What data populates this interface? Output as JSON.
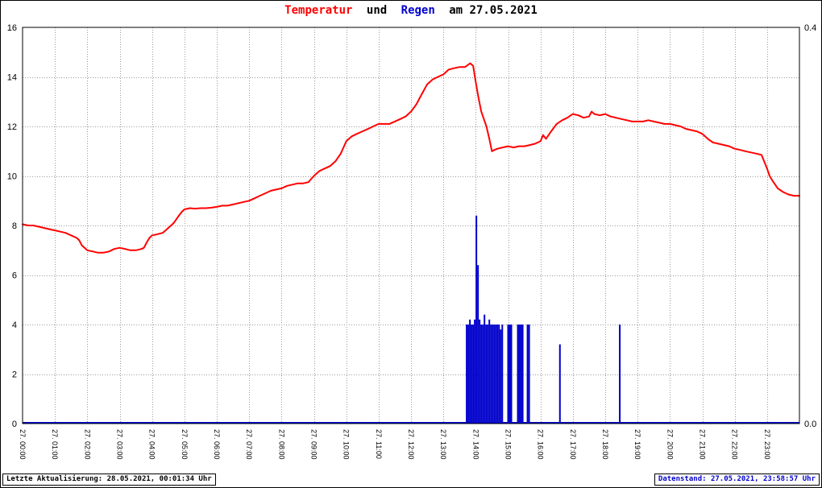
{
  "title": {
    "part1": "Temperatur",
    "part2": "und",
    "part3": "Regen",
    "part4": "am 27.05.2021"
  },
  "footer": {
    "last_update": "Letzte Aktualisierung: 28.05.2021, 00:01:34 Uhr",
    "data_state": "Datenstand: 27.05.2021, 23:58:57 Uhr"
  },
  "colors": {
    "temperature": "#ff0000",
    "rain": "#0000cc",
    "title_text": "#000000",
    "grid": "#9a9a9a",
    "axis": "#000000"
  },
  "chart_data": {
    "type": "mixed",
    "title": "Temperatur und Regen am 27.05.2021",
    "grid": true,
    "left_axis": {
      "label": "Temperatur",
      "min": 0,
      "max": 16,
      "ticks": [
        0,
        2,
        4,
        6,
        8,
        10,
        12,
        14,
        16
      ]
    },
    "right_axis": {
      "label": "Regen",
      "min": 0,
      "max": 0.4,
      "tick_labels": [
        "0.4",
        "0.0"
      ]
    },
    "x_axis": {
      "min_hour": 0,
      "max_hour": 24,
      "labels": [
        "27. 00:00",
        "27. 01:00",
        "27. 02:00",
        "27. 03:00",
        "27. 04:00",
        "27. 05:00",
        "27. 06:00",
        "27. 07:00",
        "27. 08:00",
        "27. 09:00",
        "27. 10:00",
        "27. 11:00",
        "27. 12:00",
        "27. 13:00",
        "27. 14:00",
        "27. 15:00",
        "27. 16:00",
        "27. 17:00",
        "27. 18:00",
        "27. 19:00",
        "27. 20:00",
        "27. 21:00",
        "27. 22:00",
        "27. 23:00"
      ]
    },
    "series": [
      {
        "name": "Temperatur",
        "type": "line",
        "axis": "left",
        "color": "#ff0000",
        "points": [
          [
            0,
            8.05
          ],
          [
            0.17,
            8.0
          ],
          [
            0.33,
            8.0
          ],
          [
            0.5,
            7.95
          ],
          [
            0.67,
            7.9
          ],
          [
            0.83,
            7.85
          ],
          [
            1,
            7.8
          ],
          [
            1.17,
            7.75
          ],
          [
            1.33,
            7.7
          ],
          [
            1.5,
            7.6
          ],
          [
            1.67,
            7.5
          ],
          [
            1.75,
            7.4
          ],
          [
            1.83,
            7.2
          ],
          [
            2,
            7.0
          ],
          [
            2.17,
            6.95
          ],
          [
            2.33,
            6.9
          ],
          [
            2.5,
            6.9
          ],
          [
            2.67,
            6.95
          ],
          [
            2.83,
            7.05
          ],
          [
            3,
            7.1
          ],
          [
            3.17,
            7.05
          ],
          [
            3.33,
            7.0
          ],
          [
            3.5,
            7.0
          ],
          [
            3.67,
            7.05
          ],
          [
            3.75,
            7.1
          ],
          [
            3.83,
            7.3
          ],
          [
            3.92,
            7.5
          ],
          [
            4,
            7.6
          ],
          [
            4.17,
            7.65
          ],
          [
            4.33,
            7.7
          ],
          [
            4.5,
            7.9
          ],
          [
            4.67,
            8.1
          ],
          [
            4.83,
            8.4
          ],
          [
            4.92,
            8.55
          ],
          [
            5,
            8.65
          ],
          [
            5.17,
            8.7
          ],
          [
            5.33,
            8.68
          ],
          [
            5.5,
            8.7
          ],
          [
            5.67,
            8.7
          ],
          [
            5.83,
            8.72
          ],
          [
            6,
            8.75
          ],
          [
            6.17,
            8.8
          ],
          [
            6.33,
            8.8
          ],
          [
            6.5,
            8.85
          ],
          [
            6.67,
            8.9
          ],
          [
            6.83,
            8.95
          ],
          [
            7,
            9.0
          ],
          [
            7.17,
            9.1
          ],
          [
            7.33,
            9.2
          ],
          [
            7.5,
            9.3
          ],
          [
            7.67,
            9.4
          ],
          [
            7.83,
            9.45
          ],
          [
            8,
            9.5
          ],
          [
            8.17,
            9.6
          ],
          [
            8.33,
            9.65
          ],
          [
            8.5,
            9.7
          ],
          [
            8.67,
            9.7
          ],
          [
            8.83,
            9.75
          ],
          [
            9,
            10.0
          ],
          [
            9.17,
            10.2
          ],
          [
            9.33,
            10.3
          ],
          [
            9.5,
            10.4
          ],
          [
            9.67,
            10.6
          ],
          [
            9.83,
            10.9
          ],
          [
            10,
            11.4
          ],
          [
            10.17,
            11.6
          ],
          [
            10.33,
            11.7
          ],
          [
            10.5,
            11.8
          ],
          [
            10.67,
            11.9
          ],
          [
            10.83,
            12.0
          ],
          [
            11,
            12.1
          ],
          [
            11.17,
            12.1
          ],
          [
            11.33,
            12.1
          ],
          [
            11.5,
            12.2
          ],
          [
            11.67,
            12.3
          ],
          [
            11.83,
            12.4
          ],
          [
            12,
            12.6
          ],
          [
            12.17,
            12.9
          ],
          [
            12.33,
            13.3
          ],
          [
            12.5,
            13.7
          ],
          [
            12.67,
            13.9
          ],
          [
            12.83,
            14.0
          ],
          [
            13,
            14.1
          ],
          [
            13.17,
            14.3
          ],
          [
            13.33,
            14.35
          ],
          [
            13.5,
            14.4
          ],
          [
            13.67,
            14.4
          ],
          [
            13.83,
            14.55
          ],
          [
            13.92,
            14.45
          ],
          [
            14,
            13.8
          ],
          [
            14.08,
            13.2
          ],
          [
            14.17,
            12.6
          ],
          [
            14.25,
            12.3
          ],
          [
            14.33,
            12.0
          ],
          [
            14.42,
            11.5
          ],
          [
            14.5,
            11.0
          ],
          [
            14.58,
            11.05
          ],
          [
            14.67,
            11.1
          ],
          [
            14.83,
            11.15
          ],
          [
            15,
            11.2
          ],
          [
            15.17,
            11.15
          ],
          [
            15.33,
            11.2
          ],
          [
            15.5,
            11.2
          ],
          [
            15.67,
            11.25
          ],
          [
            15.83,
            11.3
          ],
          [
            16,
            11.4
          ],
          [
            16.08,
            11.65
          ],
          [
            16.17,
            11.5
          ],
          [
            16.33,
            11.8
          ],
          [
            16.5,
            12.1
          ],
          [
            16.67,
            12.25
          ],
          [
            16.83,
            12.35
          ],
          [
            17,
            12.5
          ],
          [
            17.17,
            12.45
          ],
          [
            17.33,
            12.35
          ],
          [
            17.5,
            12.4
          ],
          [
            17.58,
            12.6
          ],
          [
            17.67,
            12.5
          ],
          [
            17.83,
            12.45
          ],
          [
            18,
            12.5
          ],
          [
            18.17,
            12.4
          ],
          [
            18.33,
            12.35
          ],
          [
            18.5,
            12.3
          ],
          [
            18.67,
            12.25
          ],
          [
            18.83,
            12.2
          ],
          [
            19,
            12.2
          ],
          [
            19.17,
            12.2
          ],
          [
            19.33,
            12.25
          ],
          [
            19.5,
            12.2
          ],
          [
            19.67,
            12.15
          ],
          [
            19.83,
            12.1
          ],
          [
            20,
            12.1
          ],
          [
            20.17,
            12.05
          ],
          [
            20.33,
            12.0
          ],
          [
            20.5,
            11.9
          ],
          [
            20.67,
            11.85
          ],
          [
            20.83,
            11.8
          ],
          [
            21,
            11.7
          ],
          [
            21.17,
            11.5
          ],
          [
            21.33,
            11.35
          ],
          [
            21.5,
            11.3
          ],
          [
            21.67,
            11.25
          ],
          [
            21.83,
            11.2
          ],
          [
            22,
            11.1
          ],
          [
            22.17,
            11.05
          ],
          [
            22.33,
            11.0
          ],
          [
            22.5,
            10.95
          ],
          [
            22.67,
            10.9
          ],
          [
            22.83,
            10.85
          ],
          [
            23,
            10.3
          ],
          [
            23.08,
            10.0
          ],
          [
            23.17,
            9.8
          ],
          [
            23.33,
            9.5
          ],
          [
            23.5,
            9.35
          ],
          [
            23.67,
            9.25
          ],
          [
            23.83,
            9.2
          ],
          [
            24,
            9.2
          ]
        ]
      },
      {
        "name": "Regen",
        "type": "bar",
        "axis": "right",
        "color": "#0000cc",
        "points": [
          [
            13.72,
            0.1
          ],
          [
            13.77,
            0.1
          ],
          [
            13.82,
            0.105
          ],
          [
            13.87,
            0.1
          ],
          [
            13.92,
            0.1
          ],
          [
            13.97,
            0.105
          ],
          [
            14.02,
            0.21
          ],
          [
            14.07,
            0.16
          ],
          [
            14.12,
            0.105
          ],
          [
            14.17,
            0.1
          ],
          [
            14.22,
            0.1
          ],
          [
            14.27,
            0.11
          ],
          [
            14.32,
            0.1
          ],
          [
            14.37,
            0.1
          ],
          [
            14.42,
            0.105
          ],
          [
            14.47,
            0.1
          ],
          [
            14.52,
            0.1
          ],
          [
            14.57,
            0.1
          ],
          [
            14.62,
            0.1
          ],
          [
            14.67,
            0.1
          ],
          [
            14.72,
            0.1
          ],
          [
            14.77,
            0.095
          ],
          [
            14.82,
            0.1
          ],
          [
            15.0,
            0.1
          ],
          [
            15.05,
            0.1
          ],
          [
            15.1,
            0.1
          ],
          [
            15.3,
            0.1
          ],
          [
            15.35,
            0.1
          ],
          [
            15.4,
            0.1
          ],
          [
            15.45,
            0.1
          ],
          [
            15.6,
            0.1
          ],
          [
            15.65,
            0.1
          ],
          [
            16.6,
            0.08
          ],
          [
            18.45,
            0.1
          ]
        ]
      }
    ]
  }
}
